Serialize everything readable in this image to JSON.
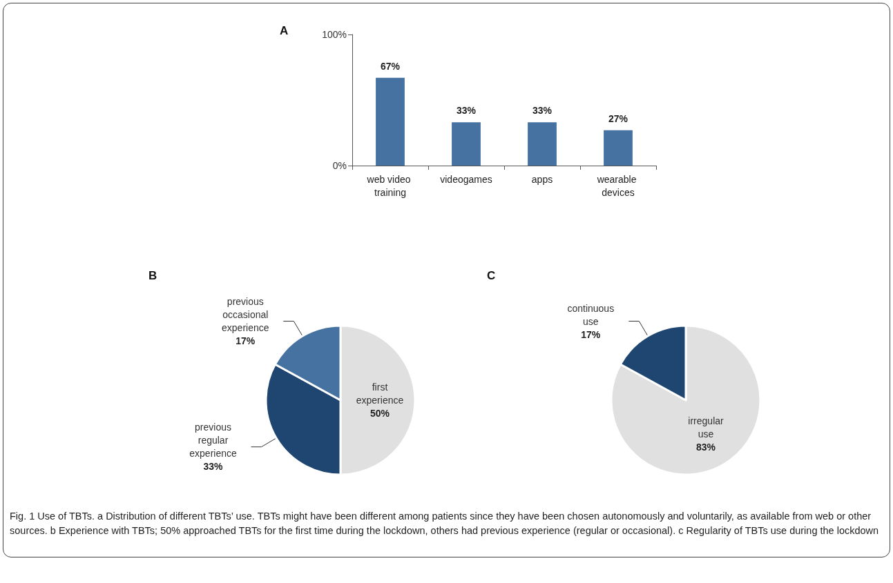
{
  "chart_data": [
    {
      "type": "bar",
      "title": "A",
      "categories": [
        "web video training",
        "videogames",
        "apps",
        "wearable devices"
      ],
      "values": [
        67,
        33,
        33,
        27
      ],
      "color": "#4672a1",
      "value_labels": [
        "67%",
        "33%",
        "33%",
        "27%"
      ],
      "ylim": [
        0,
        100
      ],
      "yticks": [
        {
          "value": 0,
          "label": "0%"
        },
        {
          "value": 100,
          "label": "100%"
        }
      ],
      "annotations": [
        "Fig. 1 Use of TBTs. a Distribution of different TBTs’ use. TBTs might have been different among patients since they have been chosen autonomously and voluntarily, as available from web or other sources. b Experience with TBTs; 50% approached TBTs for the first time during the lockdown, others had previous experience (regular or occasional). c Regularity of TBTs use during the lockdown"
      ]
    },
    {
      "type": "pie",
      "title": "B",
      "categories": [
        "first experience",
        "previous regular experience",
        "previous occasional experience"
      ],
      "values": [
        50,
        33,
        17
      ],
      "colors": [
        "#e0e0e0",
        "#1e4670",
        "#4672a1"
      ],
      "value_labels": [
        "50%",
        "33%",
        "17%"
      ]
    },
    {
      "type": "pie",
      "title": "C",
      "categories": [
        "irregular use",
        "continuous use"
      ],
      "values": [
        83,
        17
      ],
      "colors": [
        "#e0e0e0",
        "#1e4670"
      ],
      "value_labels": [
        "83%",
        "17%"
      ]
    }
  ]
}
